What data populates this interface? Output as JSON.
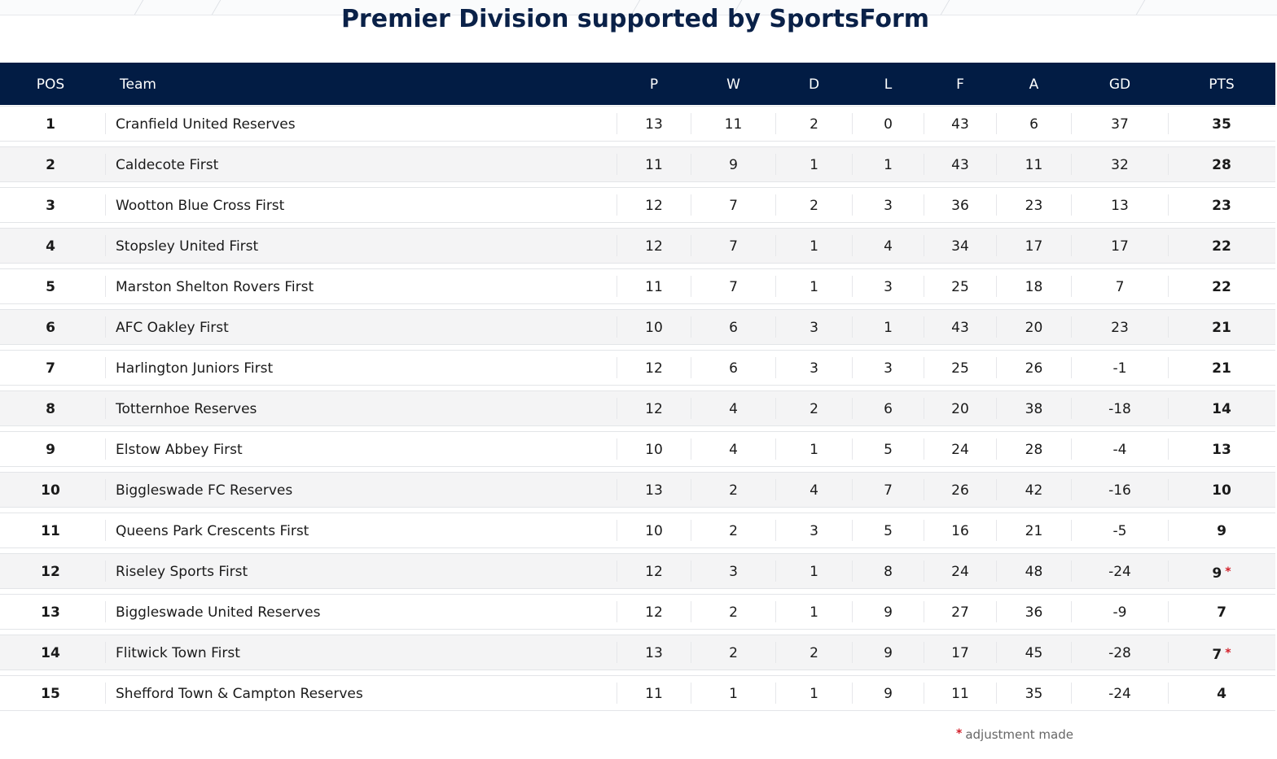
{
  "title": "Premier Division supported by SportsForm",
  "columns": [
    "POS",
    "Team",
    "P",
    "W",
    "D",
    "L",
    "F",
    "A",
    "GD",
    "PTS"
  ],
  "rows": [
    {
      "pos": "1",
      "team": "Cranfield United Reserves",
      "p": "13",
      "w": "11",
      "d": "2",
      "l": "0",
      "f": "43",
      "a": "6",
      "gd": "37",
      "pts": "35",
      "adjusted": false
    },
    {
      "pos": "2",
      "team": "Caldecote First",
      "p": "11",
      "w": "9",
      "d": "1",
      "l": "1",
      "f": "43",
      "a": "11",
      "gd": "32",
      "pts": "28",
      "adjusted": false
    },
    {
      "pos": "3",
      "team": "Wootton Blue Cross First",
      "p": "12",
      "w": "7",
      "d": "2",
      "l": "3",
      "f": "36",
      "a": "23",
      "gd": "13",
      "pts": "23",
      "adjusted": false
    },
    {
      "pos": "4",
      "team": "Stopsley United First",
      "p": "12",
      "w": "7",
      "d": "1",
      "l": "4",
      "f": "34",
      "a": "17",
      "gd": "17",
      "pts": "22",
      "adjusted": false
    },
    {
      "pos": "5",
      "team": "Marston Shelton Rovers First",
      "p": "11",
      "w": "7",
      "d": "1",
      "l": "3",
      "f": "25",
      "a": "18",
      "gd": "7",
      "pts": "22",
      "adjusted": false
    },
    {
      "pos": "6",
      "team": "AFC Oakley First",
      "p": "10",
      "w": "6",
      "d": "3",
      "l": "1",
      "f": "43",
      "a": "20",
      "gd": "23",
      "pts": "21",
      "adjusted": false
    },
    {
      "pos": "7",
      "team": "Harlington Juniors First",
      "p": "12",
      "w": "6",
      "d": "3",
      "l": "3",
      "f": "25",
      "a": "26",
      "gd": "-1",
      "pts": "21",
      "adjusted": false
    },
    {
      "pos": "8",
      "team": "Totternhoe Reserves",
      "p": "12",
      "w": "4",
      "d": "2",
      "l": "6",
      "f": "20",
      "a": "38",
      "gd": "-18",
      "pts": "14",
      "adjusted": false
    },
    {
      "pos": "9",
      "team": "Elstow Abbey First",
      "p": "10",
      "w": "4",
      "d": "1",
      "l": "5",
      "f": "24",
      "a": "28",
      "gd": "-4",
      "pts": "13",
      "adjusted": false
    },
    {
      "pos": "10",
      "team": "Biggleswade FC Reserves",
      "p": "13",
      "w": "2",
      "d": "4",
      "l": "7",
      "f": "26",
      "a": "42",
      "gd": "-16",
      "pts": "10",
      "adjusted": false
    },
    {
      "pos": "11",
      "team": "Queens Park Crescents First",
      "p": "10",
      "w": "2",
      "d": "3",
      "l": "5",
      "f": "16",
      "a": "21",
      "gd": "-5",
      "pts": "9",
      "adjusted": false
    },
    {
      "pos": "12",
      "team": "Riseley Sports First",
      "p": "12",
      "w": "3",
      "d": "1",
      "l": "8",
      "f": "24",
      "a": "48",
      "gd": "-24",
      "pts": "9",
      "adjusted": true
    },
    {
      "pos": "13",
      "team": "Biggleswade United Reserves",
      "p": "12",
      "w": "2",
      "d": "1",
      "l": "9",
      "f": "27",
      "a": "36",
      "gd": "-9",
      "pts": "7",
      "adjusted": false
    },
    {
      "pos": "14",
      "team": "Flitwick Town First",
      "p": "13",
      "w": "2",
      "d": "2",
      "l": "9",
      "f": "17",
      "a": "45",
      "gd": "-28",
      "pts": "7",
      "adjusted": true
    },
    {
      "pos": "15",
      "team": "Shefford Town & Campton Reserves",
      "p": "11",
      "w": "1",
      "d": "1",
      "l": "9",
      "f": "11",
      "a": "35",
      "gd": "-24",
      "pts": "4",
      "adjusted": false
    }
  ],
  "adjustment_marker": "*",
  "footnote": "adjustment made",
  "colors": {
    "header_bg": "#021c44",
    "title": "#0a2148",
    "alt_row": "#f4f4f5",
    "marker": "#d3202a"
  }
}
